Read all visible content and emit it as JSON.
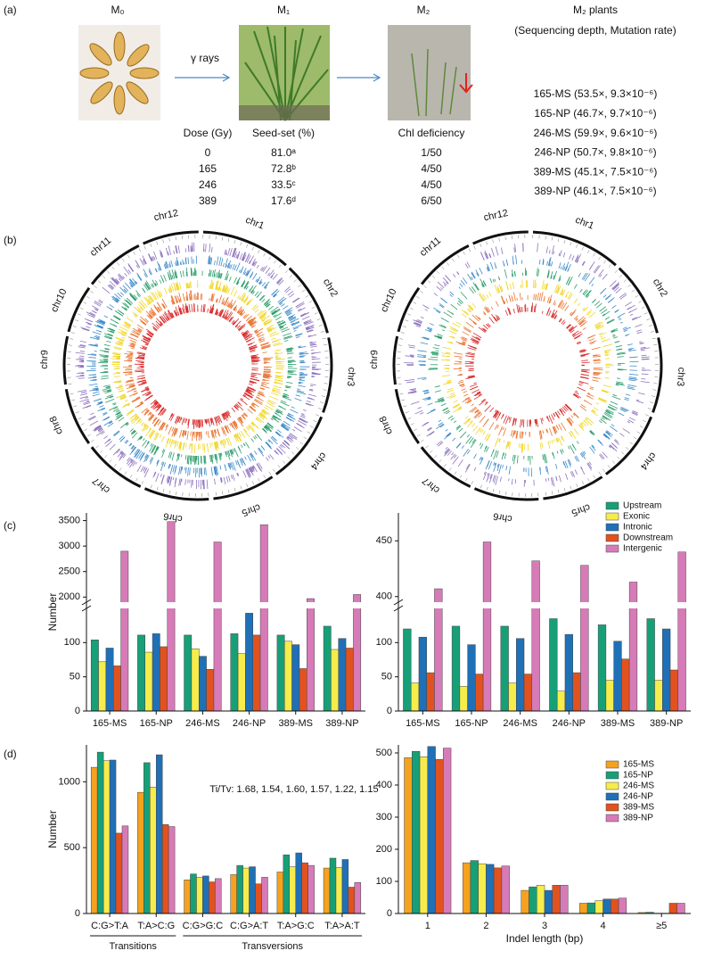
{
  "panel_labels": [
    "(a)",
    "(b)",
    "(c)",
    "(d)"
  ],
  "panel_a": {
    "generations": [
      "M₀",
      "M₁",
      "M₂"
    ],
    "treatment": "γ rays",
    "plants_title": "M₂ plants",
    "plants_subtitle": "(Sequencing depth, Mutation rate)",
    "plants": [
      "165-MS (53.5×, 9.3×10⁻⁶)",
      "165-NP (46.7×, 9.7×10⁻⁶)",
      "246-MS (59.9×, 9.6×10⁻⁶)",
      "246-NP (50.7×, 9.8×10⁻⁶)",
      "389-MS (45.1×, 7.5×10⁻⁶)",
      "389-NP (46.1×, 7.5×10⁻⁶)"
    ],
    "table": {
      "header": [
        "Dose (Gy)",
        "Seed-set (%)",
        "Chl deficiency"
      ],
      "rows": [
        [
          "0",
          "81.0ᵃ",
          "1/50"
        ],
        [
          "165",
          "72.8ᵇ",
          "4/50"
        ],
        [
          "246",
          "33.5ᶜ",
          "4/50"
        ],
        [
          "389",
          "17.6ᵈ",
          "6/50"
        ]
      ]
    }
  },
  "panel_b": {
    "circos": [
      {
        "chromosomes": [
          "chr1",
          "chr2",
          "chr3",
          "chr4",
          "chr5",
          "chr6",
          "chr7",
          "chr8",
          "chr9",
          "chr10",
          "chr11",
          "chr12"
        ]
      },
      {
        "chromosomes": [
          "chr1",
          "chr2",
          "chr3",
          "chr4",
          "chr5",
          "chr6",
          "chr7",
          "chr8",
          "chr9",
          "chr10",
          "chr11",
          "chr12"
        ]
      }
    ]
  },
  "chart_data": [
    {
      "type": "bar",
      "y_label": "Number",
      "categories": [
        "165-MS",
        "165-NP",
        "246-MS",
        "246-NP",
        "389-MS",
        "389-NP"
      ],
      "series": [
        {
          "name": "Upstream",
          "color": "#17a077",
          "values": [
            104,
            111,
            111,
            113,
            111,
            124
          ]
        },
        {
          "name": "Exonic",
          "color": "#f6ec4c",
          "values": [
            72,
            86,
            91,
            84,
            102,
            90
          ]
        },
        {
          "name": "Intronic",
          "color": "#1f70b6",
          "values": [
            92,
            113,
            80,
            143,
            97,
            106
          ]
        },
        {
          "name": "Downstream",
          "color": "#e2521f",
          "values": [
            66,
            94,
            61,
            111,
            62,
            92
          ]
        },
        {
          "name": "Intergenic",
          "color": "#d77bb8",
          "values": [
            2900,
            3480,
            3080,
            3420,
            1970,
            2050
          ]
        }
      ],
      "ylim": [
        0,
        150
      ],
      "yticks": [
        0,
        50,
        100
      ],
      "ylim_upper": [
        1900,
        3650
      ],
      "yticks_upper": [
        2000,
        2500,
        3000,
        3500
      ]
    },
    {
      "type": "bar",
      "categories": [
        "165-MS",
        "165-NP",
        "246-MS",
        "246-NP",
        "389-MS",
        "389-NP"
      ],
      "series": [
        {
          "name": "Upstream",
          "color": "#17a077",
          "values": [
            120,
            124,
            124,
            135,
            126,
            135
          ]
        },
        {
          "name": "Exonic",
          "color": "#f6ec4c",
          "values": [
            41,
            36,
            41,
            29,
            45,
            45
          ]
        },
        {
          "name": "Intronic",
          "color": "#1f70b6",
          "values": [
            108,
            97,
            106,
            112,
            102,
            120
          ]
        },
        {
          "name": "Downstream",
          "color": "#e2521f",
          "values": [
            56,
            54,
            54,
            56,
            76,
            60
          ]
        },
        {
          "name": "Intergenic",
          "color": "#d77bb8",
          "values": [
            407,
            449,
            432,
            428,
            413,
            440
          ]
        }
      ],
      "ylim": [
        0,
        150
      ],
      "yticks": [
        0,
        50,
        100
      ],
      "ylim_upper": [
        395,
        475
      ],
      "yticks_upper": [
        400,
        450
      ],
      "legend": "upper right"
    },
    {
      "type": "bar",
      "y_label": "Number",
      "categories": [
        "C:G>T:A",
        "T:A>C:G",
        "C:G>G:C",
        "C:G>A:T",
        "T:A>G:C",
        "T:A>A:T"
      ],
      "series": [
        {
          "name": "165-MS",
          "color": "#f4a21f",
          "values": [
            1110,
            920,
            255,
            295,
            315,
            345
          ]
        },
        {
          "name": "165-NP",
          "color": "#17a077",
          "values": [
            1225,
            1145,
            300,
            365,
            445,
            420
          ]
        },
        {
          "name": "246-MS",
          "color": "#f6ec4c",
          "values": [
            1160,
            960,
            275,
            345,
            355,
            350
          ]
        },
        {
          "name": "246-NP",
          "color": "#1f70b6",
          "values": [
            1165,
            1205,
            285,
            355,
            460,
            410
          ]
        },
        {
          "name": "389-MS",
          "color": "#e2521f",
          "values": [
            610,
            675,
            240,
            225,
            385,
            200
          ]
        },
        {
          "name": "389-NP",
          "color": "#d77bb8",
          "values": [
            665,
            660,
            265,
            275,
            365,
            235
          ]
        }
      ],
      "ylim": [
        0,
        1280
      ],
      "yticks": [
        0,
        500,
        1000
      ],
      "annotation": "Ti/Tv: 1.68, 1.54, 1.60, 1.57, 1.22, 1.15",
      "groups": [
        "Transitions",
        "Transversions"
      ]
    },
    {
      "type": "bar",
      "x_label": "Indel length (bp)",
      "categories": [
        "1",
        "2",
        "3",
        "4",
        "≥5"
      ],
      "series": [
        {
          "name": "165-MS",
          "color": "#f4a21f",
          "values": [
            485,
            158,
            72,
            32,
            3
          ]
        },
        {
          "name": "165-NP",
          "color": "#17a077",
          "values": [
            505,
            165,
            83,
            33,
            4
          ]
        },
        {
          "name": "246-MS",
          "color": "#f6ec4c",
          "values": [
            488,
            155,
            88,
            40,
            1
          ]
        },
        {
          "name": "246-NP",
          "color": "#1f70b6",
          "values": [
            520,
            153,
            72,
            45,
            1
          ]
        },
        {
          "name": "389-MS",
          "color": "#e2521f",
          "values": [
            480,
            142,
            88,
            45,
            32
          ]
        },
        {
          "name": "389-NP",
          "color": "#d77bb8",
          "values": [
            515,
            148,
            88,
            48,
            32
          ]
        }
      ],
      "ylim": [
        0,
        525
      ],
      "yticks": [
        0,
        100,
        200,
        300,
        400,
        500
      ],
      "legend": "upper right"
    }
  ]
}
